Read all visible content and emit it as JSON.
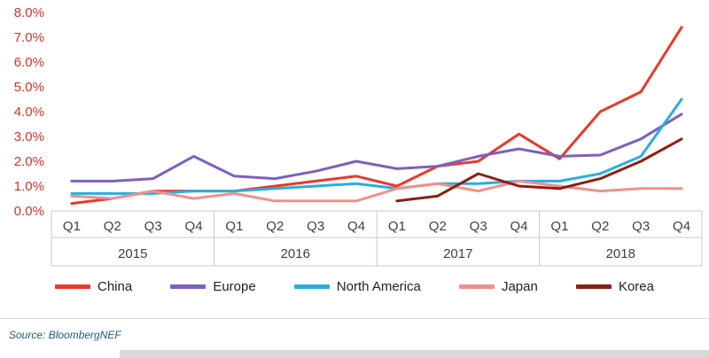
{
  "chart_data": {
    "type": "line",
    "x_quarters": [
      "Q1",
      "Q2",
      "Q3",
      "Q4",
      "Q1",
      "Q2",
      "Q3",
      "Q4",
      "Q1",
      "Q2",
      "Q3",
      "Q4",
      "Q1",
      "Q2",
      "Q3",
      "Q4"
    ],
    "x_years": [
      "2015",
      "2016",
      "2017",
      "2018"
    ],
    "y_ticks": [
      "0.0%",
      "1.0%",
      "2.0%",
      "3.0%",
      "4.0%",
      "5.0%",
      "6.0%",
      "7.0%",
      "8.0%"
    ],
    "ylim": [
      0,
      8
    ],
    "grid": false,
    "legend_position": "bottom",
    "series": [
      {
        "name": "China",
        "color": "#e8392b",
        "values": [
          0.3,
          0.5,
          0.8,
          0.8,
          0.8,
          1.0,
          1.2,
          1.4,
          1.0,
          1.8,
          2.0,
          3.1,
          2.1,
          4.0,
          4.8,
          7.4
        ]
      },
      {
        "name": "Europe",
        "color": "#7d60be",
        "values": [
          1.2,
          1.2,
          1.3,
          2.2,
          1.4,
          1.3,
          1.6,
          2.0,
          1.7,
          1.8,
          2.2,
          2.5,
          2.2,
          2.25,
          2.9,
          3.9
        ]
      },
      {
        "name": "North America",
        "color": "#29aede",
        "values": [
          0.7,
          0.7,
          0.7,
          0.8,
          0.8,
          0.9,
          1.0,
          1.1,
          0.9,
          1.1,
          1.1,
          1.2,
          1.2,
          1.5,
          2.2,
          4.5
        ]
      },
      {
        "name": "Japan",
        "color": "#ef918a",
        "values": [
          0.6,
          0.5,
          0.8,
          0.5,
          0.7,
          0.4,
          0.4,
          0.4,
          0.9,
          1.1,
          0.8,
          1.2,
          1.0,
          0.8,
          0.9,
          0.9
        ]
      },
      {
        "name": "Korea",
        "color": "#8d1f13",
        "values": [
          null,
          null,
          null,
          null,
          null,
          null,
          null,
          null,
          0.4,
          0.6,
          1.5,
          1.0,
          0.9,
          1.3,
          2.0,
          2.9
        ]
      }
    ]
  },
  "footer": {
    "source": "Source: BloombergNEF"
  },
  "colors": {
    "axis_label": "#d43425",
    "axis_text": "#404040",
    "axis_line": "#c9c9c9",
    "source_text": "#1f5c7a"
  }
}
